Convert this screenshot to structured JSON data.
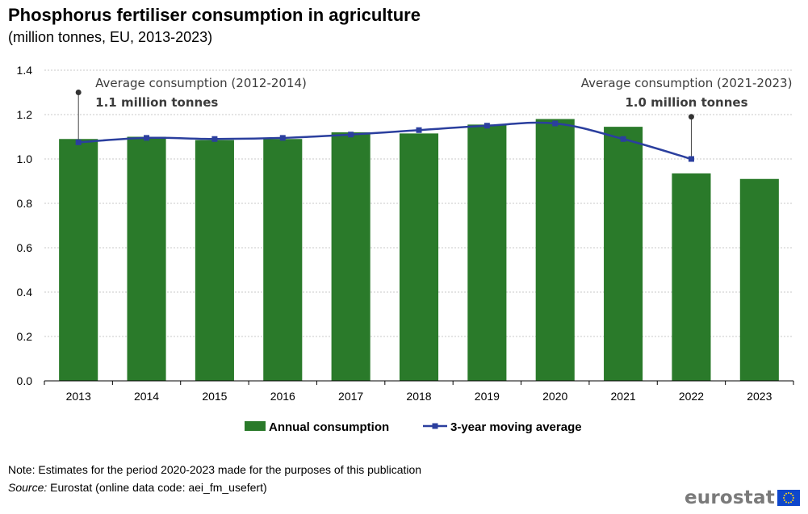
{
  "header": {
    "title": "Phosphorus fertiliser consumption in agriculture",
    "subtitle": "(million  tonnes, EU, 2013-2023)"
  },
  "footer": {
    "note": "Note: Estimates for the period 2020-2023 made for the purposes of this publication",
    "source_label": "Source:",
    "source_text": " Eurostat (online data code: aei_fm_usefert)",
    "logo_text": "eurostat",
    "logo_icon": "eu-flag-icon"
  },
  "chart_data": {
    "type": "bar",
    "categories": [
      "2013",
      "2014",
      "2015",
      "2016",
      "2017",
      "2018",
      "2019",
      "2020",
      "2021",
      "2022",
      "2023"
    ],
    "series": [
      {
        "name": "Annual consumption",
        "type": "bar",
        "color": "#2a7a2a",
        "values": [
          1.09,
          1.1,
          1.085,
          1.09,
          1.12,
          1.115,
          1.155,
          1.18,
          1.145,
          0.935,
          0.91
        ]
      },
      {
        "name": "3-year moving average",
        "type": "line",
        "color": "#2b3f9e",
        "values": [
          1.075,
          1.095,
          1.09,
          1.095,
          1.11,
          1.13,
          1.15,
          1.16,
          1.09,
          1.0,
          null
        ]
      }
    ],
    "ylim": [
      0,
      1.4
    ],
    "yticks": [
      "0.0",
      "0.2",
      "0.4",
      "0.6",
      "0.8",
      "1.0",
      "1.2",
      "1.4"
    ],
    "grid": true,
    "legend_position": "bottom",
    "annotations": [
      {
        "category": "2013",
        "value": 1.3,
        "line_label": "Average consumption (2012-2014)",
        "value_label": "1.1 million tonnes"
      },
      {
        "category": "2022",
        "value": 1.19,
        "line_label": "Average consumption (2021-2023)",
        "value_label": "1.0 million tonnes"
      }
    ]
  }
}
